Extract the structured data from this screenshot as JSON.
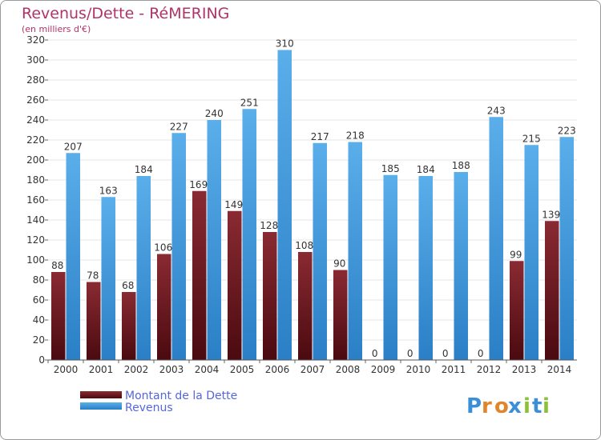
{
  "chart_data": {
    "type": "bar",
    "title": "Revenus/Dette - RéMERING",
    "subtitle": "(en milliers d'€)",
    "categories": [
      "2000",
      "2001",
      "2002",
      "2003",
      "2004",
      "2005",
      "2006",
      "2007",
      "2008",
      "2009",
      "2010",
      "2011",
      "2012",
      "2013",
      "2014"
    ],
    "series": [
      {
        "name": "Montant de la Dette",
        "color": "#6e1a22",
        "values": [
          88,
          78,
          68,
          106,
          169,
          149,
          128,
          108,
          90,
          0,
          0,
          0,
          0,
          99,
          139
        ]
      },
      {
        "name": "Revenus",
        "color": "#3f9ae0",
        "values": [
          207,
          163,
          184,
          227,
          240,
          251,
          310,
          217,
          218,
          185,
          184,
          188,
          243,
          215,
          223
        ]
      }
    ],
    "ylim": [
      0,
      320
    ],
    "ytick_step": 20,
    "yticks": [
      "0",
      "20",
      "40",
      "60",
      "80",
      "100",
      "120",
      "140",
      "160",
      "180",
      "200",
      "220",
      "240",
      "260",
      "280",
      "300",
      "320"
    ],
    "grid": "horizontal",
    "legend_position": "bottom-left"
  },
  "logo": {
    "text": "Proxiti",
    "letters": [
      "P",
      "r",
      "o",
      "x",
      "i",
      "t",
      "i"
    ],
    "colors": [
      "#3b8fd6",
      "#e0862a",
      "#e0862a",
      "#3b8fd6",
      "#8cbf3a",
      "#3b8fd6",
      "#8cbf3a"
    ]
  }
}
